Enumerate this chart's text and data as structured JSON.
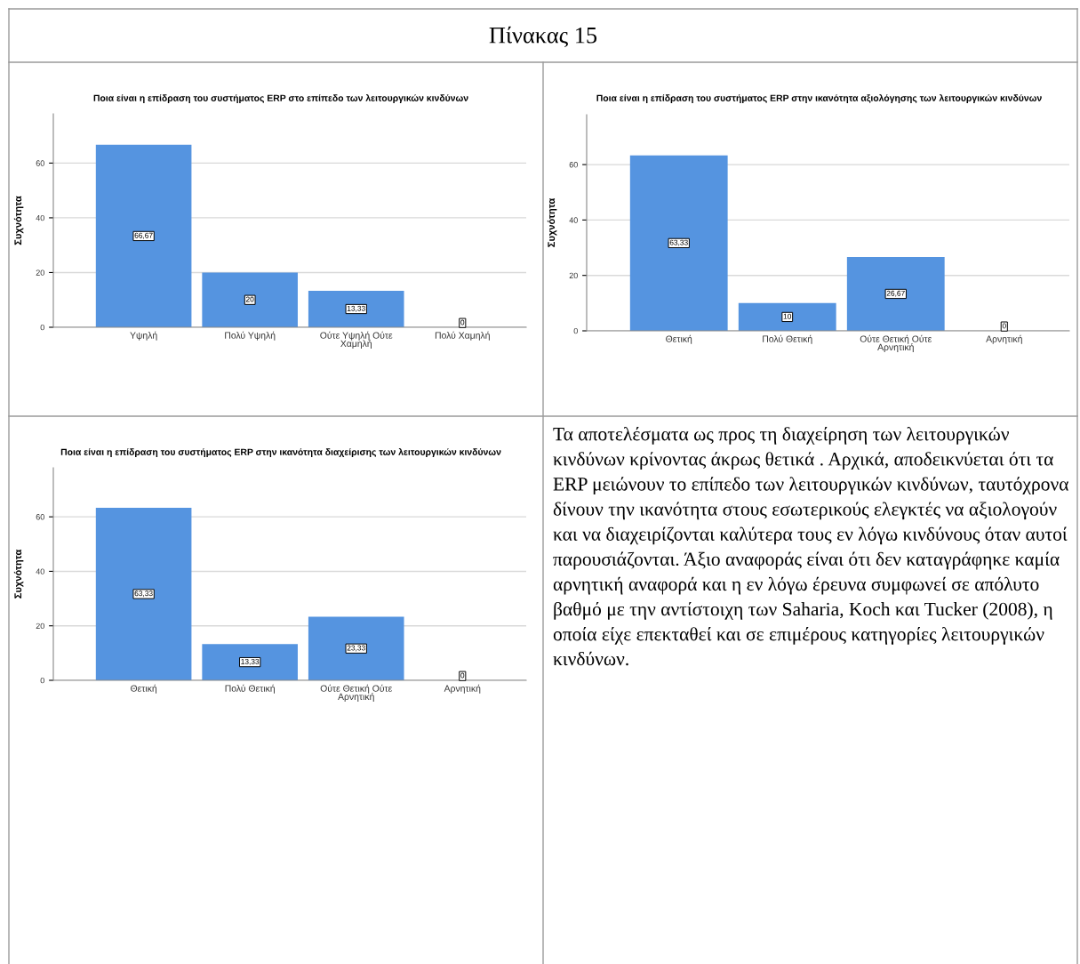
{
  "chart_data": [
    {
      "type": "bar",
      "title": "Ποια είναι η επίδραση του συστήματος ERP στο επίπεδο των λειτουργικών κινδύνων",
      "ylabel": "Συχνότητα",
      "categories": [
        "Υψηλή",
        "Πολύ Υψηλή",
        "Ούτε Υψηλή Ούτε Χαμηλή",
        "Πολύ Χαμηλή"
      ],
      "values": [
        66.67,
        20,
        13.33,
        0
      ],
      "value_labels": [
        "66,67",
        "20",
        "13,33",
        "0"
      ],
      "color": "#5594e0",
      "ylim": [
        0,
        78
      ],
      "yticks": [
        0,
        20,
        40,
        60
      ],
      "grid": "y"
    },
    {
      "type": "bar",
      "title": "Ποια είναι η επίδραση του συστήματος ERP στην ικανότητα αξιολόγησης των λειτουργικών κινδύνων",
      "ylabel": "Συχνότητα",
      "categories": [
        "Θετική",
        "Πολύ Θετική",
        "Ούτε Θετική Ούτε Αρνητική",
        "Αρνητική"
      ],
      "values": [
        63.33,
        10,
        26.67,
        0
      ],
      "value_labels": [
        "63,33",
        "10",
        "26,67",
        "0"
      ],
      "color": "#5594e0",
      "ylim": [
        0,
        78
      ],
      "yticks": [
        0,
        20,
        40,
        60
      ],
      "grid": "y"
    },
    {
      "type": "bar",
      "title": "Ποια είναι η επίδραση του συστήματος ERP στην ικανότητα διαχείρισης των λειτουργικών κινδύνων",
      "ylabel": "Συχνότητα",
      "categories": [
        "Θετική",
        "Πολύ Θετική",
        "Ούτε Θετική Ούτε Αρνητική",
        "Αρνητική"
      ],
      "values": [
        63.33,
        13.33,
        23.33,
        0
      ],
      "value_labels": [
        "63,33",
        "13,33",
        "23,33",
        "0"
      ],
      "color": "#5594e0",
      "ylim": [
        0,
        78
      ],
      "yticks": [
        0,
        20,
        40,
        60
      ],
      "grid": "y"
    },
    {
      "type": "other",
      "title": "Πίνακας 15",
      "annotations": [
        "Τα αποτελέσματα ως προς τη διαχείρηση των λειτουργικών κινδύνων κρίνοντας άκρως θετικά . Αρχικά, αποδεικνύεται ότι τα ERP μειώνουν το επίπεδο των λειτουργικών κινδύνων, ταυτόχρονα δίνουν την ικανότητα στους εσωτερικούς ελεγκτές να αξιολογούν και να διαχειρίζονται καλύτερα τους εν λόγω κινδύνους όταν αυτοί παρουσιάζονται. Άξιο αναφοράς είναι ότι δεν καταγράφηκε καμία αρνητική αναφορά και η εν λόγω έρευνα συμφωνεί σε απόλυτο βαθμό με την αντίστοιχη των Saharia, Koch και Tucker (2008), η οποία είχε επεκταθεί και σε επιμέρους κατηγορίες λειτουργικών κινδύνων."
      ]
    }
  ]
}
